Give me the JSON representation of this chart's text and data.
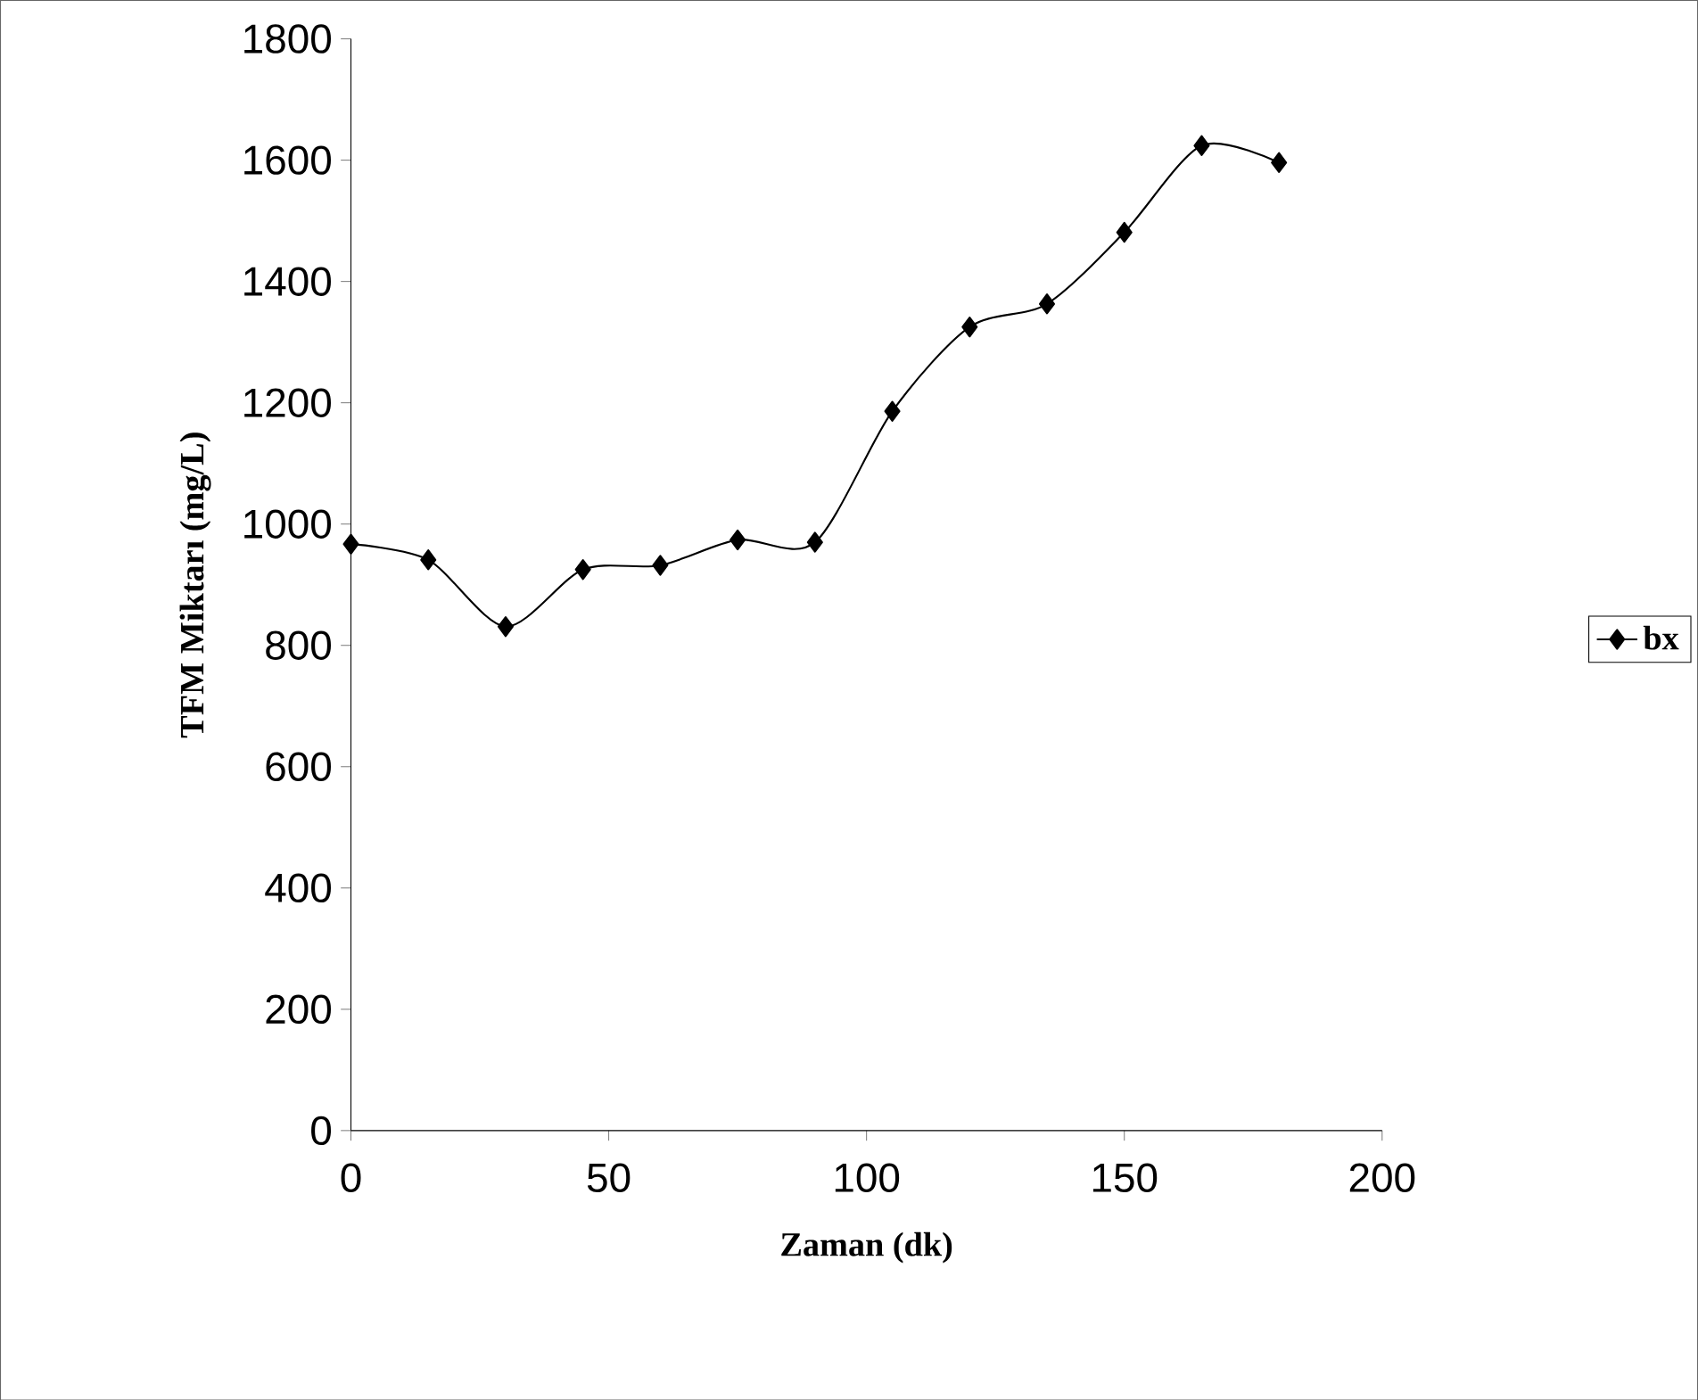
{
  "chart_data": {
    "type": "line",
    "xlabel": "Zaman (dk)",
    "ylabel": "TFM Miktarı (mg/L)",
    "x": [
      0,
      15,
      30,
      45,
      60,
      75,
      90,
      105,
      120,
      135,
      150,
      165,
      180
    ],
    "series": [
      {
        "name": "bx",
        "color": "#000000",
        "values": [
          967,
          941,
          831,
          925,
          932,
          974,
          970,
          1186,
          1325,
          1363,
          1481,
          1624,
          1596
        ]
      }
    ],
    "xlim": [
      0,
      200
    ],
    "ylim": [
      0,
      1800
    ],
    "xticks": [
      0,
      50,
      100,
      150,
      200
    ],
    "yticks": [
      0,
      200,
      400,
      600,
      800,
      1000,
      1200,
      1400,
      1600,
      1800
    ],
    "marker": "diamond",
    "legend": "right",
    "grid": false
  }
}
